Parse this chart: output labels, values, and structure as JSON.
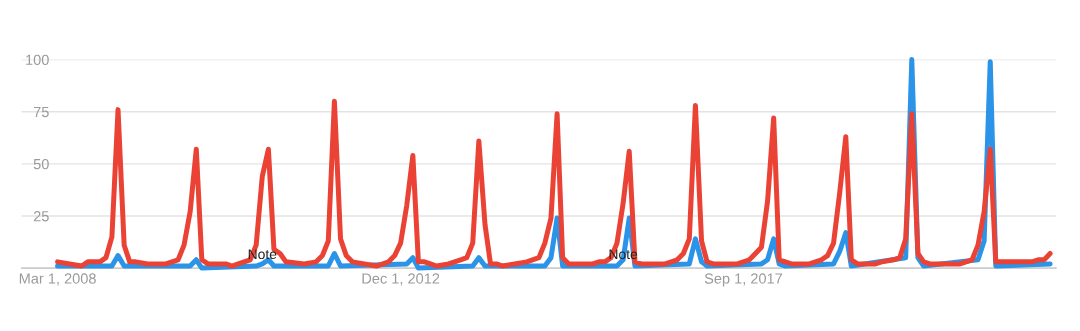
{
  "chart_data": {
    "type": "line",
    "xlim": [
      "2007-09",
      "2022-01"
    ],
    "xticks": [
      {
        "value": "2008-03-01",
        "label": "Mar 1, 2008"
      },
      {
        "value": "2012-12-01",
        "label": "Dec 1, 2012"
      },
      {
        "value": "2017-09-01",
        "label": "Sep 1, 2017"
      }
    ],
    "ylim": [
      0,
      100
    ],
    "yticks": [
      {
        "value": 0,
        "label": null
      },
      25,
      50,
      75,
      100
    ],
    "grid": "y",
    "line_style": "solid",
    "marker": "none",
    "annotations": [
      {
        "text": "Note",
        "x": "2011-01",
        "y": 3
      },
      {
        "text": "Note",
        "x": "2016-01",
        "y": 3
      }
    ],
    "series": [
      {
        "color": "#2b93e8",
        "x": [
          "2008-03",
          "2008-12",
          "2009-01",
          "2009-02",
          "2010-01",
          "2010-02",
          "2010-03",
          "2010-12",
          "2011-01",
          "2011-02",
          "2011-03",
          "2011-12",
          "2012-01",
          "2012-02",
          "2013-01",
          "2013-02",
          "2013-03",
          "2013-12",
          "2014-01",
          "2014-02",
          "2014-12",
          "2015-01",
          "2015-02",
          "2015-03",
          "2015-12",
          "2016-01",
          "2016-02",
          "2016-03",
          "2016-12",
          "2017-01",
          "2017-02",
          "2017-03",
          "2017-12",
          "2018-01",
          "2018-02",
          "2018-03",
          "2018-04",
          "2018-12",
          "2019-01",
          "2019-02",
          "2019-03",
          "2019-12",
          "2020-01",
          "2020-02",
          "2020-03",
          "2020-12",
          "2021-01",
          "2021-02",
          "2021-03",
          "2021-12"
        ],
        "values": [
          1,
          1,
          6,
          1,
          1,
          4,
          0,
          1,
          2,
          4,
          1,
          1,
          7,
          1,
          2,
          5,
          0,
          1,
          5,
          1,
          1,
          5,
          24,
          1,
          1,
          4,
          24,
          1,
          2,
          14,
          3,
          1,
          2,
          4,
          14,
          2,
          1,
          2,
          8,
          17,
          1,
          5,
          100,
          5,
          1,
          4,
          13,
          99,
          1,
          2
        ]
      },
      {
        "color": "#ea4335",
        "x": [
          "2008-03",
          "2008-05",
          "2008-07",
          "2008-08",
          "2008-10",
          "2008-11",
          "2008-12",
          "2009-01",
          "2009-02",
          "2009-03",
          "2009-04",
          "2009-06",
          "2009-09",
          "2009-10",
          "2009-11",
          "2009-12",
          "2010-01",
          "2010-02",
          "2010-03",
          "2010-04",
          "2010-07",
          "2010-08",
          "2010-09",
          "2010-11",
          "2010-12",
          "2011-01",
          "2011-02",
          "2011-03",
          "2011-04",
          "2011-05",
          "2011-08",
          "2011-10",
          "2011-11",
          "2011-12",
          "2012-01",
          "2012-02",
          "2012-03",
          "2012-04",
          "2012-06",
          "2012-08",
          "2012-10",
          "2012-11",
          "2012-12",
          "2013-01",
          "2013-02",
          "2013-03",
          "2013-04",
          "2013-05",
          "2013-06",
          "2013-08",
          "2013-10",
          "2013-11",
          "2013-12",
          "2014-01",
          "2014-02",
          "2014-03",
          "2014-04",
          "2014-05",
          "2014-07",
          "2014-09",
          "2014-11",
          "2014-12",
          "2015-01",
          "2015-02",
          "2015-03",
          "2015-04",
          "2015-08",
          "2015-09",
          "2015-10",
          "2015-11",
          "2015-12",
          "2016-01",
          "2016-02",
          "2016-03",
          "2016-04",
          "2016-08",
          "2016-09",
          "2016-10",
          "2016-11",
          "2016-12",
          "2017-01",
          "2017-02",
          "2017-03",
          "2017-04",
          "2017-08",
          "2017-09",
          "2017-10",
          "2017-11",
          "2017-12",
          "2018-01",
          "2018-02",
          "2018-03",
          "2018-04",
          "2018-05",
          "2018-08",
          "2018-10",
          "2018-11",
          "2018-12",
          "2019-01",
          "2019-02",
          "2019-03",
          "2019-04",
          "2019-07",
          "2019-08",
          "2019-10",
          "2019-11",
          "2019-12",
          "2020-01",
          "2020-02",
          "2020-03",
          "2020-04",
          "2020-09",
          "2020-10",
          "2020-11",
          "2020-12",
          "2021-01",
          "2021-02",
          "2021-03",
          "2021-04",
          "2021-09",
          "2021-10",
          "2021-11",
          "2021-12"
        ],
        "values": [
          3,
          2,
          1,
          3,
          3,
          5,
          15,
          76,
          11,
          3,
          3,
          2,
          2,
          3,
          4,
          11,
          27,
          57,
          4,
          2,
          2,
          1,
          2,
          4,
          11,
          44,
          57,
          9,
          7,
          3,
          2,
          3,
          6,
          13,
          80,
          14,
          6,
          3,
          2,
          1,
          3,
          6,
          12,
          30,
          54,
          3,
          3,
          2,
          1,
          2,
          4,
          5,
          12,
          61,
          21,
          2,
          2,
          1,
          2,
          3,
          5,
          12,
          24,
          74,
          5,
          2,
          2,
          3,
          3,
          5,
          12,
          31,
          56,
          3,
          2,
          2,
          3,
          4,
          7,
          14,
          78,
          13,
          3,
          2,
          2,
          3,
          4,
          7,
          10,
          32,
          72,
          4,
          3,
          2,
          2,
          4,
          6,
          12,
          36,
          63,
          4,
          2,
          2,
          3,
          4,
          5,
          14,
          74,
          7,
          3,
          2,
          2,
          3,
          4,
          11,
          27,
          57,
          3,
          3,
          3,
          4,
          4,
          7
        ]
      }
    ]
  }
}
